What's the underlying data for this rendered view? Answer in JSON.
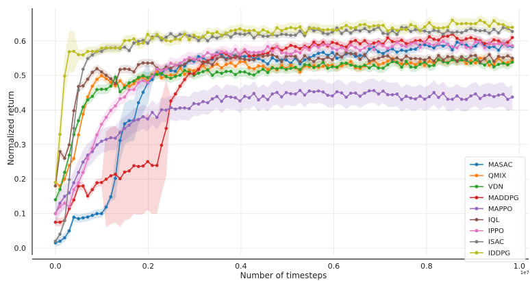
{
  "chart_data": {
    "type": "line",
    "xlabel": "Number of timesteps",
    "ylabel": "Normalized return",
    "x_multiplier_label": "1e7",
    "xlim": [
      -0.05,
      1.02
    ],
    "ylim": [
      -0.02,
      0.695
    ],
    "x_ticks": [
      0.0,
      0.2,
      0.4,
      0.6,
      0.8,
      1.0
    ],
    "x_tick_labels": [
      "0.0",
      "0.2",
      "0.4",
      "0.6",
      "0.8",
      "1.0"
    ],
    "y_ticks": [
      0.0,
      0.1,
      0.2,
      0.3,
      0.4,
      0.5,
      0.6
    ],
    "y_tick_labels": [
      "0.0",
      "0.1",
      "0.2",
      "0.3",
      "0.4",
      "0.5",
      "0.6"
    ],
    "grid": true,
    "legend_position": "bottom-right",
    "series": [
      {
        "name": "MASAC",
        "color": "#1f77b4",
        "band": 0.012,
        "keys": [
          [
            0.0,
            0.015
          ],
          [
            0.01,
            0.02
          ],
          [
            0.02,
            0.03
          ],
          [
            0.03,
            0.05
          ],
          [
            0.04,
            0.09
          ],
          [
            0.05,
            0.085
          ],
          [
            0.07,
            0.09
          ],
          [
            0.09,
            0.1
          ],
          [
            0.1,
            0.1
          ],
          [
            0.11,
            0.12
          ],
          [
            0.12,
            0.15
          ],
          [
            0.13,
            0.2
          ],
          [
            0.14,
            0.32
          ],
          [
            0.15,
            0.37
          ],
          [
            0.16,
            0.38
          ],
          [
            0.17,
            0.36
          ],
          [
            0.18,
            0.43
          ],
          [
            0.19,
            0.45
          ],
          [
            0.21,
            0.5
          ],
          [
            0.23,
            0.51
          ],
          [
            0.26,
            0.52
          ],
          [
            0.3,
            0.55
          ],
          [
            0.34,
            0.55
          ],
          [
            0.36,
            0.56
          ],
          [
            0.4,
            0.55
          ],
          [
            0.46,
            0.54
          ],
          [
            0.52,
            0.54
          ],
          [
            0.56,
            0.56
          ],
          [
            0.62,
            0.56
          ],
          [
            0.68,
            0.57
          ],
          [
            0.76,
            0.58
          ],
          [
            0.82,
            0.58
          ],
          [
            0.9,
            0.59
          ],
          [
            0.985,
            0.58
          ]
        ]
      },
      {
        "name": "QMIX",
        "color": "#ff7f0e",
        "band": 0.012,
        "keys": [
          [
            0.0,
            0.19
          ],
          [
            0.01,
            0.18
          ],
          [
            0.02,
            0.2
          ],
          [
            0.03,
            0.24
          ],
          [
            0.04,
            0.26
          ],
          [
            0.05,
            0.33
          ],
          [
            0.06,
            0.39
          ],
          [
            0.07,
            0.44
          ],
          [
            0.08,
            0.47
          ],
          [
            0.09,
            0.49
          ],
          [
            0.1,
            0.5
          ],
          [
            0.11,
            0.49
          ],
          [
            0.12,
            0.48
          ],
          [
            0.14,
            0.48
          ],
          [
            0.16,
            0.48
          ],
          [
            0.19,
            0.49
          ],
          [
            0.22,
            0.5
          ],
          [
            0.26,
            0.51
          ],
          [
            0.3,
            0.52
          ],
          [
            0.36,
            0.53
          ],
          [
            0.42,
            0.53
          ],
          [
            0.48,
            0.52
          ],
          [
            0.54,
            0.52
          ],
          [
            0.6,
            0.53
          ],
          [
            0.66,
            0.53
          ],
          [
            0.72,
            0.54
          ],
          [
            0.8,
            0.54
          ],
          [
            0.88,
            0.54
          ],
          [
            0.985,
            0.54
          ]
        ]
      },
      {
        "name": "VDN",
        "color": "#2ca02c",
        "band": 0.014,
        "keys": [
          [
            0.0,
            0.14
          ],
          [
            0.01,
            0.17
          ],
          [
            0.02,
            0.22
          ],
          [
            0.03,
            0.27
          ],
          [
            0.04,
            0.33
          ],
          [
            0.05,
            0.37
          ],
          [
            0.06,
            0.41
          ],
          [
            0.07,
            0.43
          ],
          [
            0.08,
            0.44
          ],
          [
            0.09,
            0.46
          ],
          [
            0.11,
            0.46
          ],
          [
            0.12,
            0.47
          ],
          [
            0.13,
            0.5
          ],
          [
            0.14,
            0.44
          ],
          [
            0.15,
            0.47
          ],
          [
            0.17,
            0.48
          ],
          [
            0.19,
            0.49
          ],
          [
            0.22,
            0.5
          ],
          [
            0.26,
            0.5
          ],
          [
            0.3,
            0.51
          ],
          [
            0.34,
            0.51
          ],
          [
            0.38,
            0.51
          ],
          [
            0.44,
            0.51
          ],
          [
            0.5,
            0.52
          ],
          [
            0.56,
            0.53
          ],
          [
            0.62,
            0.53
          ],
          [
            0.68,
            0.53
          ],
          [
            0.76,
            0.53
          ],
          [
            0.84,
            0.54
          ],
          [
            0.92,
            0.54
          ],
          [
            0.985,
            0.53
          ]
        ]
      },
      {
        "name": "MADDPG",
        "color": "#d62728",
        "band": 0.012,
        "keys": [
          [
            0.0,
            0.075
          ],
          [
            0.01,
            0.075
          ],
          [
            0.02,
            0.08
          ],
          [
            0.03,
            0.115
          ],
          [
            0.04,
            0.14
          ],
          [
            0.05,
            0.18
          ],
          [
            0.06,
            0.18
          ],
          [
            0.07,
            0.15
          ],
          [
            0.08,
            0.17
          ],
          [
            0.09,
            0.19
          ],
          [
            0.1,
            0.19
          ],
          [
            0.11,
            0.2
          ],
          [
            0.12,
            0.21
          ],
          [
            0.13,
            0.21
          ],
          [
            0.14,
            0.21
          ],
          [
            0.16,
            0.23
          ],
          [
            0.18,
            0.24
          ],
          [
            0.2,
            0.24
          ],
          [
            0.21,
            0.245
          ],
          [
            0.22,
            0.245
          ],
          [
            0.23,
            0.3
          ],
          [
            0.24,
            0.35
          ],
          [
            0.25,
            0.44
          ],
          [
            0.27,
            0.48
          ],
          [
            0.29,
            0.5
          ],
          [
            0.32,
            0.54
          ],
          [
            0.36,
            0.56
          ],
          [
            0.4,
            0.56
          ],
          [
            0.46,
            0.57
          ],
          [
            0.52,
            0.58
          ],
          [
            0.58,
            0.59
          ],
          [
            0.64,
            0.59
          ],
          [
            0.7,
            0.6
          ],
          [
            0.76,
            0.6
          ],
          [
            0.82,
            0.61
          ],
          [
            0.88,
            0.61
          ],
          [
            0.94,
            0.6
          ],
          [
            0.985,
            0.6
          ]
        ]
      },
      {
        "name": "MAPPO",
        "color": "#9467bd",
        "band": 0.035,
        "keys": [
          [
            0.0,
            0.1
          ],
          [
            0.01,
            0.13
          ],
          [
            0.02,
            0.15
          ],
          [
            0.03,
            0.16
          ],
          [
            0.04,
            0.19
          ],
          [
            0.05,
            0.22
          ],
          [
            0.06,
            0.25
          ],
          [
            0.07,
            0.27
          ],
          [
            0.08,
            0.28
          ],
          [
            0.09,
            0.3
          ],
          [
            0.1,
            0.31
          ],
          [
            0.12,
            0.32
          ],
          [
            0.14,
            0.34
          ],
          [
            0.16,
            0.36
          ],
          [
            0.18,
            0.37
          ],
          [
            0.2,
            0.38
          ],
          [
            0.22,
            0.39
          ],
          [
            0.25,
            0.4
          ],
          [
            0.28,
            0.41
          ],
          [
            0.31,
            0.42
          ],
          [
            0.34,
            0.43
          ],
          [
            0.38,
            0.43
          ],
          [
            0.42,
            0.44
          ],
          [
            0.46,
            0.44
          ],
          [
            0.5,
            0.45
          ],
          [
            0.54,
            0.45
          ],
          [
            0.58,
            0.45
          ],
          [
            0.62,
            0.44
          ],
          [
            0.66,
            0.45
          ],
          [
            0.7,
            0.45
          ],
          [
            0.74,
            0.44
          ],
          [
            0.8,
            0.44
          ],
          [
            0.86,
            0.44
          ],
          [
            0.92,
            0.44
          ],
          [
            0.985,
            0.44
          ]
        ]
      },
      {
        "name": "IQL",
        "color": "#8c564b",
        "band": 0.012,
        "keys": [
          [
            0.0,
            0.18
          ],
          [
            0.01,
            0.28
          ],
          [
            0.02,
            0.26
          ],
          [
            0.03,
            0.3
          ],
          [
            0.04,
            0.4
          ],
          [
            0.05,
            0.47
          ],
          [
            0.06,
            0.47
          ],
          [
            0.07,
            0.49
          ],
          [
            0.08,
            0.51
          ],
          [
            0.09,
            0.52
          ],
          [
            0.1,
            0.51
          ],
          [
            0.11,
            0.5
          ],
          [
            0.12,
            0.49
          ],
          [
            0.13,
            0.48
          ],
          [
            0.14,
            0.52
          ],
          [
            0.15,
            0.52
          ],
          [
            0.17,
            0.52
          ],
          [
            0.19,
            0.53
          ],
          [
            0.21,
            0.54
          ],
          [
            0.23,
            0.52
          ],
          [
            0.26,
            0.53
          ],
          [
            0.3,
            0.54
          ],
          [
            0.34,
            0.54
          ],
          [
            0.38,
            0.55
          ],
          [
            0.44,
            0.55
          ],
          [
            0.5,
            0.55
          ],
          [
            0.56,
            0.55
          ],
          [
            0.62,
            0.56
          ],
          [
            0.68,
            0.55
          ],
          [
            0.74,
            0.55
          ],
          [
            0.8,
            0.55
          ],
          [
            0.86,
            0.55
          ],
          [
            0.92,
            0.55
          ],
          [
            0.985,
            0.55
          ]
        ]
      },
      {
        "name": "IPPO",
        "color": "#e377c2",
        "band": 0.018,
        "keys": [
          [
            0.0,
            0.1
          ],
          [
            0.01,
            0.12
          ],
          [
            0.02,
            0.13
          ],
          [
            0.03,
            0.12
          ],
          [
            0.04,
            0.17
          ],
          [
            0.05,
            0.19
          ],
          [
            0.06,
            0.22
          ],
          [
            0.07,
            0.26
          ],
          [
            0.08,
            0.29
          ],
          [
            0.09,
            0.33
          ],
          [
            0.1,
            0.36
          ],
          [
            0.11,
            0.38
          ],
          [
            0.12,
            0.4
          ],
          [
            0.13,
            0.41
          ],
          [
            0.14,
            0.43
          ],
          [
            0.15,
            0.44
          ],
          [
            0.16,
            0.45
          ],
          [
            0.18,
            0.47
          ],
          [
            0.2,
            0.49
          ],
          [
            0.22,
            0.51
          ],
          [
            0.25,
            0.53
          ],
          [
            0.28,
            0.54
          ],
          [
            0.31,
            0.55
          ],
          [
            0.34,
            0.56
          ],
          [
            0.38,
            0.57
          ],
          [
            0.42,
            0.57
          ],
          [
            0.46,
            0.58
          ],
          [
            0.5,
            0.57
          ],
          [
            0.56,
            0.58
          ],
          [
            0.62,
            0.58
          ],
          [
            0.68,
            0.58
          ],
          [
            0.74,
            0.59
          ],
          [
            0.8,
            0.59
          ],
          [
            0.86,
            0.59
          ],
          [
            0.92,
            0.59
          ],
          [
            0.985,
            0.59
          ]
        ]
      },
      {
        "name": "ISAC",
        "color": "#7f7f7f",
        "band": 0.01,
        "keys": [
          [
            0.0,
            0.02
          ],
          [
            0.01,
            0.04
          ],
          [
            0.02,
            0.08
          ],
          [
            0.03,
            0.2
          ],
          [
            0.04,
            0.35
          ],
          [
            0.05,
            0.46
          ],
          [
            0.06,
            0.52
          ],
          [
            0.07,
            0.55
          ],
          [
            0.08,
            0.56
          ],
          [
            0.09,
            0.57
          ],
          [
            0.1,
            0.57
          ],
          [
            0.11,
            0.58
          ],
          [
            0.12,
            0.58
          ],
          [
            0.13,
            0.57
          ],
          [
            0.14,
            0.57
          ],
          [
            0.16,
            0.58
          ],
          [
            0.18,
            0.59
          ],
          [
            0.2,
            0.6
          ],
          [
            0.22,
            0.61
          ],
          [
            0.26,
            0.61
          ],
          [
            0.3,
            0.61
          ],
          [
            0.34,
            0.61
          ],
          [
            0.38,
            0.62
          ],
          [
            0.44,
            0.62
          ],
          [
            0.5,
            0.62
          ],
          [
            0.56,
            0.63
          ],
          [
            0.62,
            0.63
          ],
          [
            0.68,
            0.63
          ],
          [
            0.74,
            0.63
          ],
          [
            0.8,
            0.63
          ],
          [
            0.86,
            0.63
          ],
          [
            0.92,
            0.63
          ],
          [
            0.985,
            0.63
          ]
        ]
      },
      {
        "name": "IDDPG",
        "color": "#bcbd22",
        "band": 0.015,
        "keys": [
          [
            0.0,
            0.19
          ],
          [
            0.01,
            0.33
          ],
          [
            0.02,
            0.5
          ],
          [
            0.03,
            0.57
          ],
          [
            0.04,
            0.57
          ],
          [
            0.05,
            0.56
          ],
          [
            0.06,
            0.56
          ],
          [
            0.07,
            0.57
          ],
          [
            0.08,
            0.57
          ],
          [
            0.09,
            0.57
          ],
          [
            0.1,
            0.58
          ],
          [
            0.12,
            0.58
          ],
          [
            0.14,
            0.59
          ],
          [
            0.16,
            0.6
          ],
          [
            0.18,
            0.6
          ],
          [
            0.2,
            0.61
          ],
          [
            0.24,
            0.61
          ],
          [
            0.28,
            0.61
          ],
          [
            0.32,
            0.62
          ],
          [
            0.36,
            0.62
          ],
          [
            0.42,
            0.63
          ],
          [
            0.48,
            0.63
          ],
          [
            0.54,
            0.63
          ],
          [
            0.6,
            0.64
          ],
          [
            0.66,
            0.64
          ],
          [
            0.72,
            0.64
          ],
          [
            0.78,
            0.64
          ],
          [
            0.84,
            0.65
          ],
          [
            0.9,
            0.65
          ],
          [
            0.985,
            0.65
          ]
        ]
      }
    ]
  }
}
